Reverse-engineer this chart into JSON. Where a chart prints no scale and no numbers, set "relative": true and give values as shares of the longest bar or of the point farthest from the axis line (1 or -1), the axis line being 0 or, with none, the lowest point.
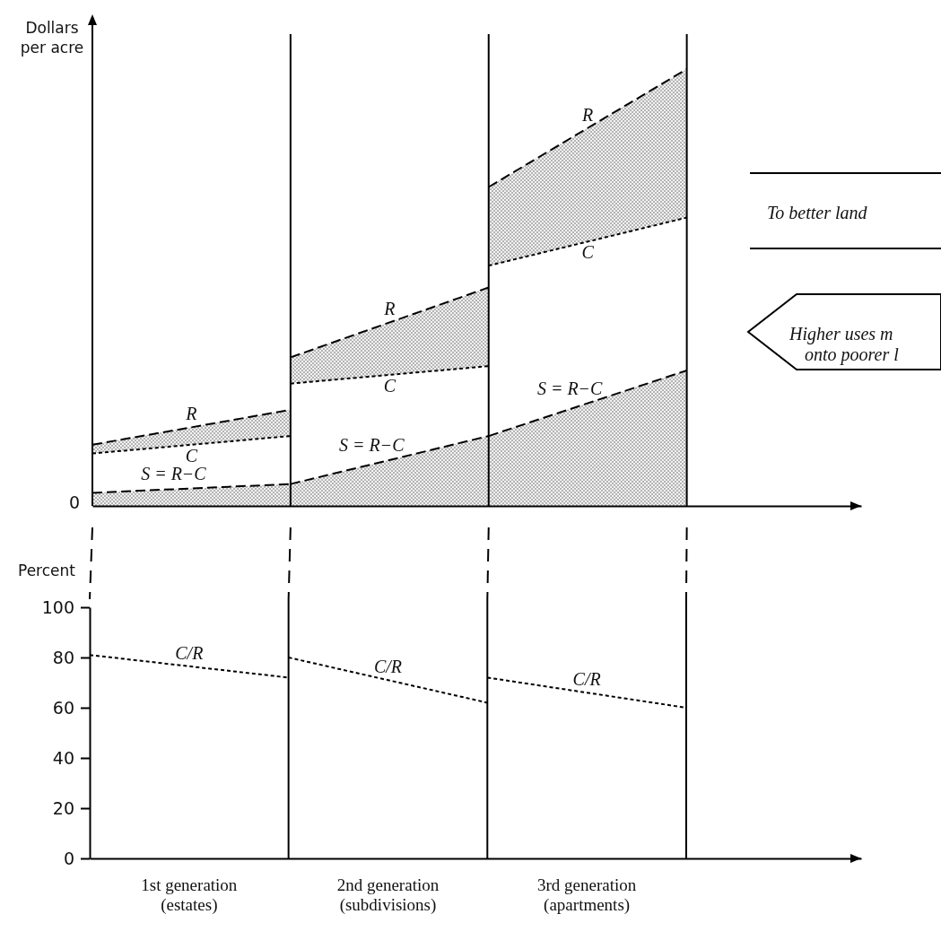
{
  "chart_data": [
    {
      "type": "line",
      "relative": true,
      "ylabel": "Dollars\nper acre",
      "xlim": [
        0,
        3.88
      ],
      "series": [
        {
          "name": "R",
          "color": "#000000",
          "line_style": "dashed",
          "x": [
            0,
            1
          ],
          "values": [
            0.14,
            0.22
          ],
          "lower": [
            0.12,
            0.16
          ],
          "upper": [
            0.14,
            0.22
          ]
        },
        {
          "name": "C",
          "color": "#000000",
          "line_style": "dotted",
          "x": [
            0,
            1
          ],
          "values": [
            0.12,
            0.16
          ]
        },
        {
          "name": "S = R−C",
          "type": "area",
          "color": "#000000",
          "line_style": "dashed",
          "x": [
            0,
            1
          ],
          "values": [
            0.03,
            0.05
          ]
        },
        {
          "name": "R",
          "color": "#000000",
          "line_style": "dashed",
          "x": [
            1,
            2
          ],
          "values": [
            0.34,
            0.5
          ],
          "lower": [
            0.28,
            0.32
          ],
          "upper": [
            0.34,
            0.5
          ]
        },
        {
          "name": "C",
          "color": "#000000",
          "line_style": "dotted",
          "x": [
            1,
            2
          ],
          "values": [
            0.28,
            0.32
          ]
        },
        {
          "name": "S = R−C",
          "type": "area",
          "color": "#000000",
          "line_style": "dashed",
          "x": [
            1,
            2
          ],
          "values": [
            0.05,
            0.16
          ]
        },
        {
          "name": "R",
          "color": "#000000",
          "line_style": "dashed",
          "x": [
            2,
            3
          ],
          "values": [
            0.73,
            1
          ],
          "lower": [
            0.55,
            0.66
          ],
          "upper": [
            0.73,
            1
          ]
        },
        {
          "name": "C",
          "color": "#000000",
          "line_style": "dotted",
          "x": [
            2,
            3
          ],
          "values": [
            0.55,
            0.66
          ]
        },
        {
          "name": "S = R−C",
          "type": "area",
          "color": "#000000",
          "line_style": "dashed",
          "x": [
            2,
            3
          ],
          "values": [
            0.16,
            0.31
          ]
        }
      ],
      "ref_lines": [
        {
          "axis": "x",
          "value": 1
        },
        {
          "axis": "x",
          "value": 2
        },
        {
          "axis": "x",
          "value": 3
        }
      ],
      "annotations": [
        {
          "text": "0",
          "x": 0,
          "y": 0
        },
        "To better land",
        "Higher uses m",
        "onto poorer l"
      ]
    },
    {
      "type": "line",
      "ylabel": "Percent",
      "xlim": [
        0,
        3.88
      ],
      "ylim": [
        0,
        100
      ],
      "yticks": [
        0,
        20,
        40,
        60,
        80,
        100
      ],
      "xticks": [
        {
          "value": 0.5,
          "label": "1st generation\n(estates)"
        },
        {
          "value": 1.5,
          "label": "2nd generation\n(subdivisions)"
        },
        {
          "value": 2.5,
          "label": "3rd generation\n(apartments)"
        }
      ],
      "series": [
        {
          "name": "C/R",
          "color": "#000000",
          "line_style": "dotted",
          "x": [
            0,
            1
          ],
          "values": [
            81,
            72
          ]
        },
        {
          "name": "C/R",
          "color": "#000000",
          "line_style": "dotted",
          "x": [
            1,
            2
          ],
          "values": [
            80,
            62
          ]
        },
        {
          "name": "C/R",
          "color": "#000000",
          "line_style": "dotted",
          "x": [
            2,
            3
          ],
          "values": [
            72,
            60
          ]
        }
      ],
      "ref_lines": [
        {
          "axis": "x",
          "value": 1
        },
        {
          "axis": "x",
          "value": 2
        },
        {
          "axis": "x",
          "value": 3
        }
      ]
    }
  ]
}
